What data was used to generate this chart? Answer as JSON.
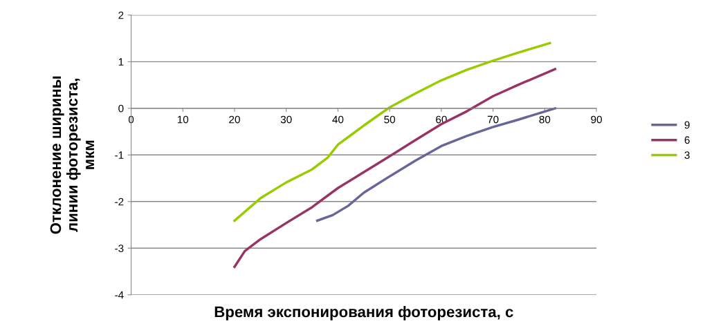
{
  "chart_data": {
    "type": "line",
    "xlabel": "Время экспонирования фоторезиста, с",
    "ylabel": "Отклонение ширины\nлинии фоторезиста,\nмкм",
    "xlim": [
      0,
      90
    ],
    "xticks": [
      0,
      10,
      20,
      30,
      40,
      50,
      60,
      70,
      80,
      90
    ],
    "ylim": [
      -4,
      2
    ],
    "yticks": [
      -4,
      -3,
      -2,
      -1,
      0,
      1,
      2
    ],
    "grid": "y",
    "legend": "right",
    "marker": "none",
    "line_style": "solid",
    "series": [
      {
        "name": "9",
        "color": "#666699",
        "x": [
          36,
          39,
          42,
          45,
          50,
          55,
          60,
          65,
          70,
          75,
          82
        ],
        "values": [
          -2.41,
          -2.29,
          -2.09,
          -1.81,
          -1.46,
          -1.12,
          -0.81,
          -0.59,
          -0.4,
          -0.24,
          0
        ]
      },
      {
        "name": "6",
        "color": "#993366",
        "x": [
          20,
          22,
          25,
          30,
          35,
          40,
          45,
          50,
          55,
          60,
          65,
          70,
          75,
          82
        ],
        "values": [
          -3.4,
          -3.06,
          -2.81,
          -2.46,
          -2.12,
          -1.71,
          -1.37,
          -1.03,
          -0.68,
          -0.34,
          -0.06,
          0.26,
          0.51,
          0.84
        ]
      },
      {
        "name": "3",
        "color": "#99cc00",
        "x": [
          20,
          25,
          30,
          35,
          38,
          40,
          45,
          50,
          55,
          60,
          65,
          70,
          75,
          81
        ],
        "values": [
          -2.41,
          -1.93,
          -1.59,
          -1.31,
          -1.06,
          -0.78,
          -0.37,
          0.02,
          0.32,
          0.6,
          0.83,
          1.02,
          1.2,
          1.4
        ]
      }
    ]
  }
}
